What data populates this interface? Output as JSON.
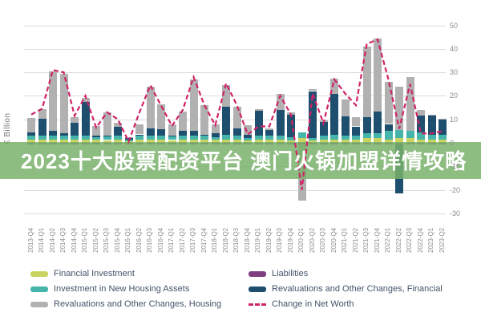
{
  "banner": {
    "text": "2023十大股票配资平台 澳门火锅加盟详情攻略",
    "bg_color": "#8abf7d",
    "text_color": "#ffffff"
  },
  "chart_data": {
    "type": "stacked-bar+line",
    "title": "",
    "ylabel": "€ Billion",
    "y_axis": {
      "ticks": [
        50,
        40,
        30,
        20,
        10,
        0,
        -10,
        -20,
        -30
      ],
      "min": -30,
      "max": 50,
      "grid": true
    },
    "categories": [
      "2013-Q4",
      "2014-Q1",
      "2014-Q2",
      "2014-Q3",
      "2014-Q4",
      "2015-Q1",
      "2015-Q2",
      "2015-Q3",
      "2015-Q4",
      "2016-Q1",
      "2016-Q2",
      "2016-Q3",
      "2016-Q4",
      "2017-Q1",
      "2017-Q2",
      "2017-Q3",
      "2017-Q4",
      "2018-Q1",
      "2018-Q2",
      "2018-Q3",
      "2018-Q4",
      "2019-Q1",
      "2019-Q2",
      "2019-Q3",
      "2019-Q4",
      "2020-Q1",
      "2020-Q2",
      "2020-Q3",
      "2020-Q4",
      "2021-Q1",
      "2021-Q2",
      "2021-Q3",
      "2021-Q4",
      "2022-Q1",
      "2022-Q2",
      "2022-Q3",
      "2022-Q4",
      "2023-Q1",
      "2023-Q2"
    ],
    "series": [
      {
        "name": "Financial Investment",
        "color": "#c8d45f",
        "values": [
          1.5,
          1.5,
          1.5,
          1.5,
          1.5,
          1.5,
          1.5,
          1.2,
          1.5,
          0.8,
          1.5,
          1.5,
          1.5,
          1.2,
          1.5,
          1.5,
          1.5,
          1.5,
          1.5,
          1.5,
          1.0,
          1.5,
          1.5,
          1.5,
          1.0,
          2.0,
          1.0,
          1.5,
          1.5,
          1.5,
          1.5,
          2.0,
          2.0,
          1.5,
          2.0,
          2.0,
          1.5,
          1.5,
          1.5
        ]
      },
      {
        "name": "Investment in New Housing Assets",
        "color": "#45b5ab",
        "values": [
          1.5,
          1.5,
          1.5,
          1.5,
          1.5,
          1.5,
          1.0,
          1.5,
          1.5,
          0.7,
          1.5,
          1.5,
          1.5,
          1.5,
          1.5,
          1.5,
          1.5,
          1.0,
          2.0,
          1.5,
          1.0,
          1.5,
          1.5,
          1.5,
          1.5,
          2.5,
          1.0,
          1.5,
          2.0,
          1.5,
          1.5,
          2.0,
          2.0,
          3.5,
          3.5,
          3.0,
          3.0,
          2.0,
          2.0
        ]
      },
      {
        "name": "Liabilities",
        "color": "#7d3f82",
        "values": [
          -0.5,
          -0.5,
          -0.5,
          -0.5,
          -0.5,
          -0.5,
          -0.5,
          -0.5,
          -0.5,
          -0.5,
          -0.5,
          -0.5,
          -0.5,
          -0.5,
          -0.5,
          -0.5,
          -0.5,
          -0.5,
          -0.5,
          -0.5,
          -0.5,
          -0.5,
          -0.5,
          -0.5,
          -0.5,
          -0.5,
          -0.5,
          -0.5,
          -0.5,
          -0.5,
          -0.5,
          -0.5,
          -0.5,
          -0.5,
          -0.5,
          -0.5,
          -0.5,
          -0.5,
          -0.5
        ]
      },
      {
        "name": "Revaluations and Other Changes, Financial",
        "color": "#1e4f6e",
        "values": [
          1.4,
          7.3,
          2.0,
          1.0,
          5.5,
          14.3,
          0.5,
          0.5,
          3.7,
          0.5,
          0.6,
          3.0,
          2.7,
          0.5,
          2.2,
          2.0,
          0.5,
          1.5,
          11.8,
          3.0,
          1.5,
          10.6,
          2.4,
          11.0,
          9.5,
          0.0,
          20.0,
          5.8,
          17.5,
          8.3,
          4.0,
          7.0,
          9.3,
          3.0,
          -21.0,
          0.0,
          7.0,
          8.0,
          6.5
        ]
      },
      {
        "name": "Revaluations and Other Changes, Housing",
        "color": "#b1b1b1",
        "values": [
          6.3,
          3.9,
          25.5,
          25.5,
          2.5,
          1.7,
          4.2,
          9.8,
          1.8,
          0.5,
          4.2,
          17.8,
          10.7,
          4.6,
          8.0,
          22.0,
          12.7,
          3.8,
          9.4,
          9.5,
          4.1,
          0.9,
          0.8,
          6.8,
          1.0,
          -24.0,
          1.0,
          0.7,
          6.3,
          7.2,
          4.0,
          30.0,
          31.2,
          18.0,
          18.5,
          23.0,
          2.5,
          0.5,
          0.3
        ]
      }
    ],
    "line": {
      "name": "Change in Net Worth",
      "color": "#cf2367",
      "style": "dashed",
      "values": [
        12,
        14.5,
        31,
        30,
        11.5,
        20,
        6.5,
        13,
        10,
        0.5,
        13,
        24.5,
        15.8,
        7.2,
        14,
        28,
        16,
        7.5,
        25.3,
        16,
        3.6,
        7,
        7,
        20,
        12,
        -20,
        21,
        8.3,
        27,
        21,
        16,
        42,
        44,
        27,
        6,
        25,
        4,
        4,
        5
      ]
    },
    "legend_position": "bottom"
  },
  "legend": {
    "items": [
      {
        "label": "Financial Investment",
        "color": "#c8d45f",
        "swatch": "box",
        "col": 0,
        "row": 0
      },
      {
        "label": "Investment in New Housing Assets",
        "color": "#45b5ab",
        "swatch": "box",
        "col": 0,
        "row": 1
      },
      {
        "label": "Revaluations and Other Changes, Housing",
        "color": "#b1b1b1",
        "swatch": "box",
        "col": 0,
        "row": 2
      },
      {
        "label": "Liabilities",
        "color": "#7d3f82",
        "swatch": "box",
        "col": 1,
        "row": 0
      },
      {
        "label": "Revaluations and Other Changes, Financial",
        "color": "#1e4f6e",
        "swatch": "box",
        "col": 1,
        "row": 1
      },
      {
        "label": "Change in Net Worth",
        "color": "#cf2367",
        "swatch": "dash",
        "col": 1,
        "row": 2
      }
    ]
  }
}
